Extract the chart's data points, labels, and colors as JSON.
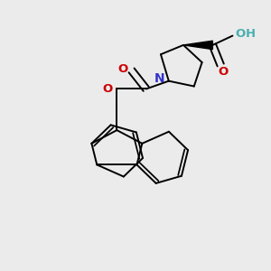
{
  "background_color": "#ebebeb",
  "line_color": "#000000",
  "nitrogen_color": "#3333cc",
  "oxygen_color": "#cc0000",
  "oh_color": "#4aafb0",
  "bond_lw": 1.4,
  "figsize": [
    3.0,
    3.0
  ],
  "dpi": 100,
  "xlim": [
    0,
    10
  ],
  "ylim": [
    0,
    10
  ]
}
